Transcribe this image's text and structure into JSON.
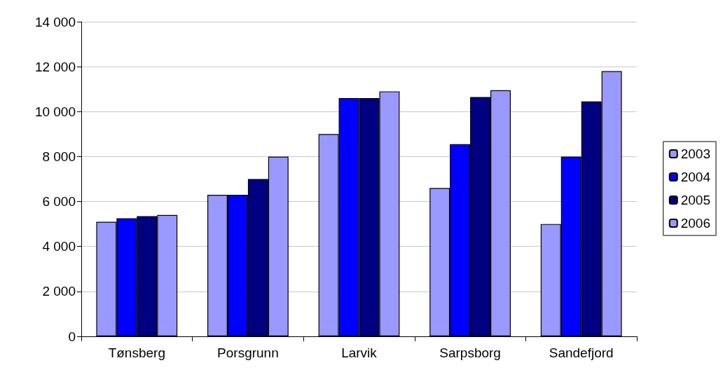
{
  "chart_data": {
    "type": "bar",
    "categories": [
      "Tønsberg",
      "Porsgrunn",
      "Larvik",
      "Sarpsborg",
      "Sandefjord"
    ],
    "series": [
      {
        "name": "2003",
        "color": "#9999ff",
        "values": [
          5100,
          6300,
          9000,
          6600,
          5000
        ]
      },
      {
        "name": "2004",
        "color": "#0000ff",
        "values": [
          5250,
          6300,
          10600,
          8550,
          8000
        ]
      },
      {
        "name": "2005",
        "color": "#000080",
        "values": [
          5350,
          7000,
          10600,
          10650,
          10450
        ]
      },
      {
        "name": "2006",
        "color": "#9999ff",
        "values": [
          5400,
          8000,
          10900,
          10950,
          11800
        ]
      }
    ],
    "ylim": [
      0,
      14000
    ],
    "yticks": [
      {
        "value": 0,
        "label": "0"
      },
      {
        "value": 2000,
        "label": "2 000"
      },
      {
        "value": 4000,
        "label": "4 000"
      },
      {
        "value": 6000,
        "label": "6 000"
      },
      {
        "value": 8000,
        "label": "8 000"
      },
      {
        "value": 10000,
        "label": "10 000"
      },
      {
        "value": 12000,
        "label": "12 000"
      },
      {
        "value": 14000,
        "label": "14 000"
      }
    ],
    "grid": "y",
    "legend": "right"
  }
}
